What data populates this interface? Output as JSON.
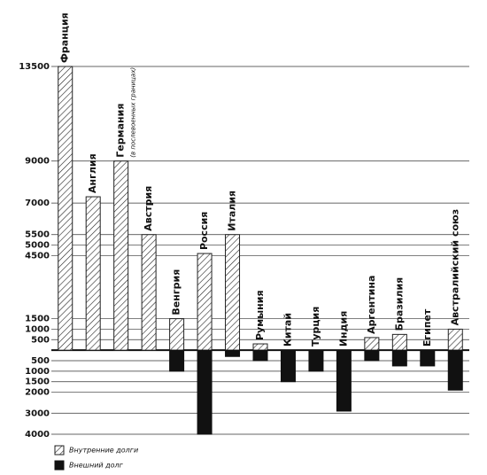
{
  "chart_data": {
    "type": "bar",
    "categories": [
      "Франция",
      "Англия",
      "Германия",
      "Австрия",
      "Венгрия",
      "Россия",
      "Италия",
      "Румыния",
      "Китай",
      "Турция",
      "Индия",
      "Аргентина",
      "Бразилия",
      "Египет",
      "Австралийский союз"
    ],
    "category_note": {
      "category": "Германия",
      "text": "(в послевоенных границах)"
    },
    "series": [
      {
        "name": "Внутренние долги",
        "color": "#222222",
        "pattern": "hatch",
        "values": [
          13500,
          7300,
          9000,
          5500,
          1500,
          4600,
          5500,
          300,
          0,
          0,
          0,
          600,
          750,
          0,
          1000
        ]
      },
      {
        "name": "Внешний долг",
        "color": "#111111",
        "pattern": "solid",
        "values": [
          0,
          0,
          0,
          0,
          -1000,
          -4000,
          -300,
          -500,
          -1500,
          -1000,
          -2900,
          -500,
          -750,
          -750,
          -1900
        ]
      }
    ],
    "ylim": [
      -4000,
      13500
    ],
    "yticks": [
      {
        "value": -4000,
        "label": "4000"
      },
      {
        "value": -3000,
        "label": "3000"
      },
      {
        "value": -2000,
        "label": "2000"
      },
      {
        "value": -1500,
        "label": "1500"
      },
      {
        "value": -1000,
        "label": "1000"
      },
      {
        "value": -500,
        "label": "500"
      },
      500,
      1000,
      1500,
      4500,
      5000,
      5500,
      7000,
      9000,
      13500
    ],
    "grid": true,
    "legend": "bottom-left"
  }
}
